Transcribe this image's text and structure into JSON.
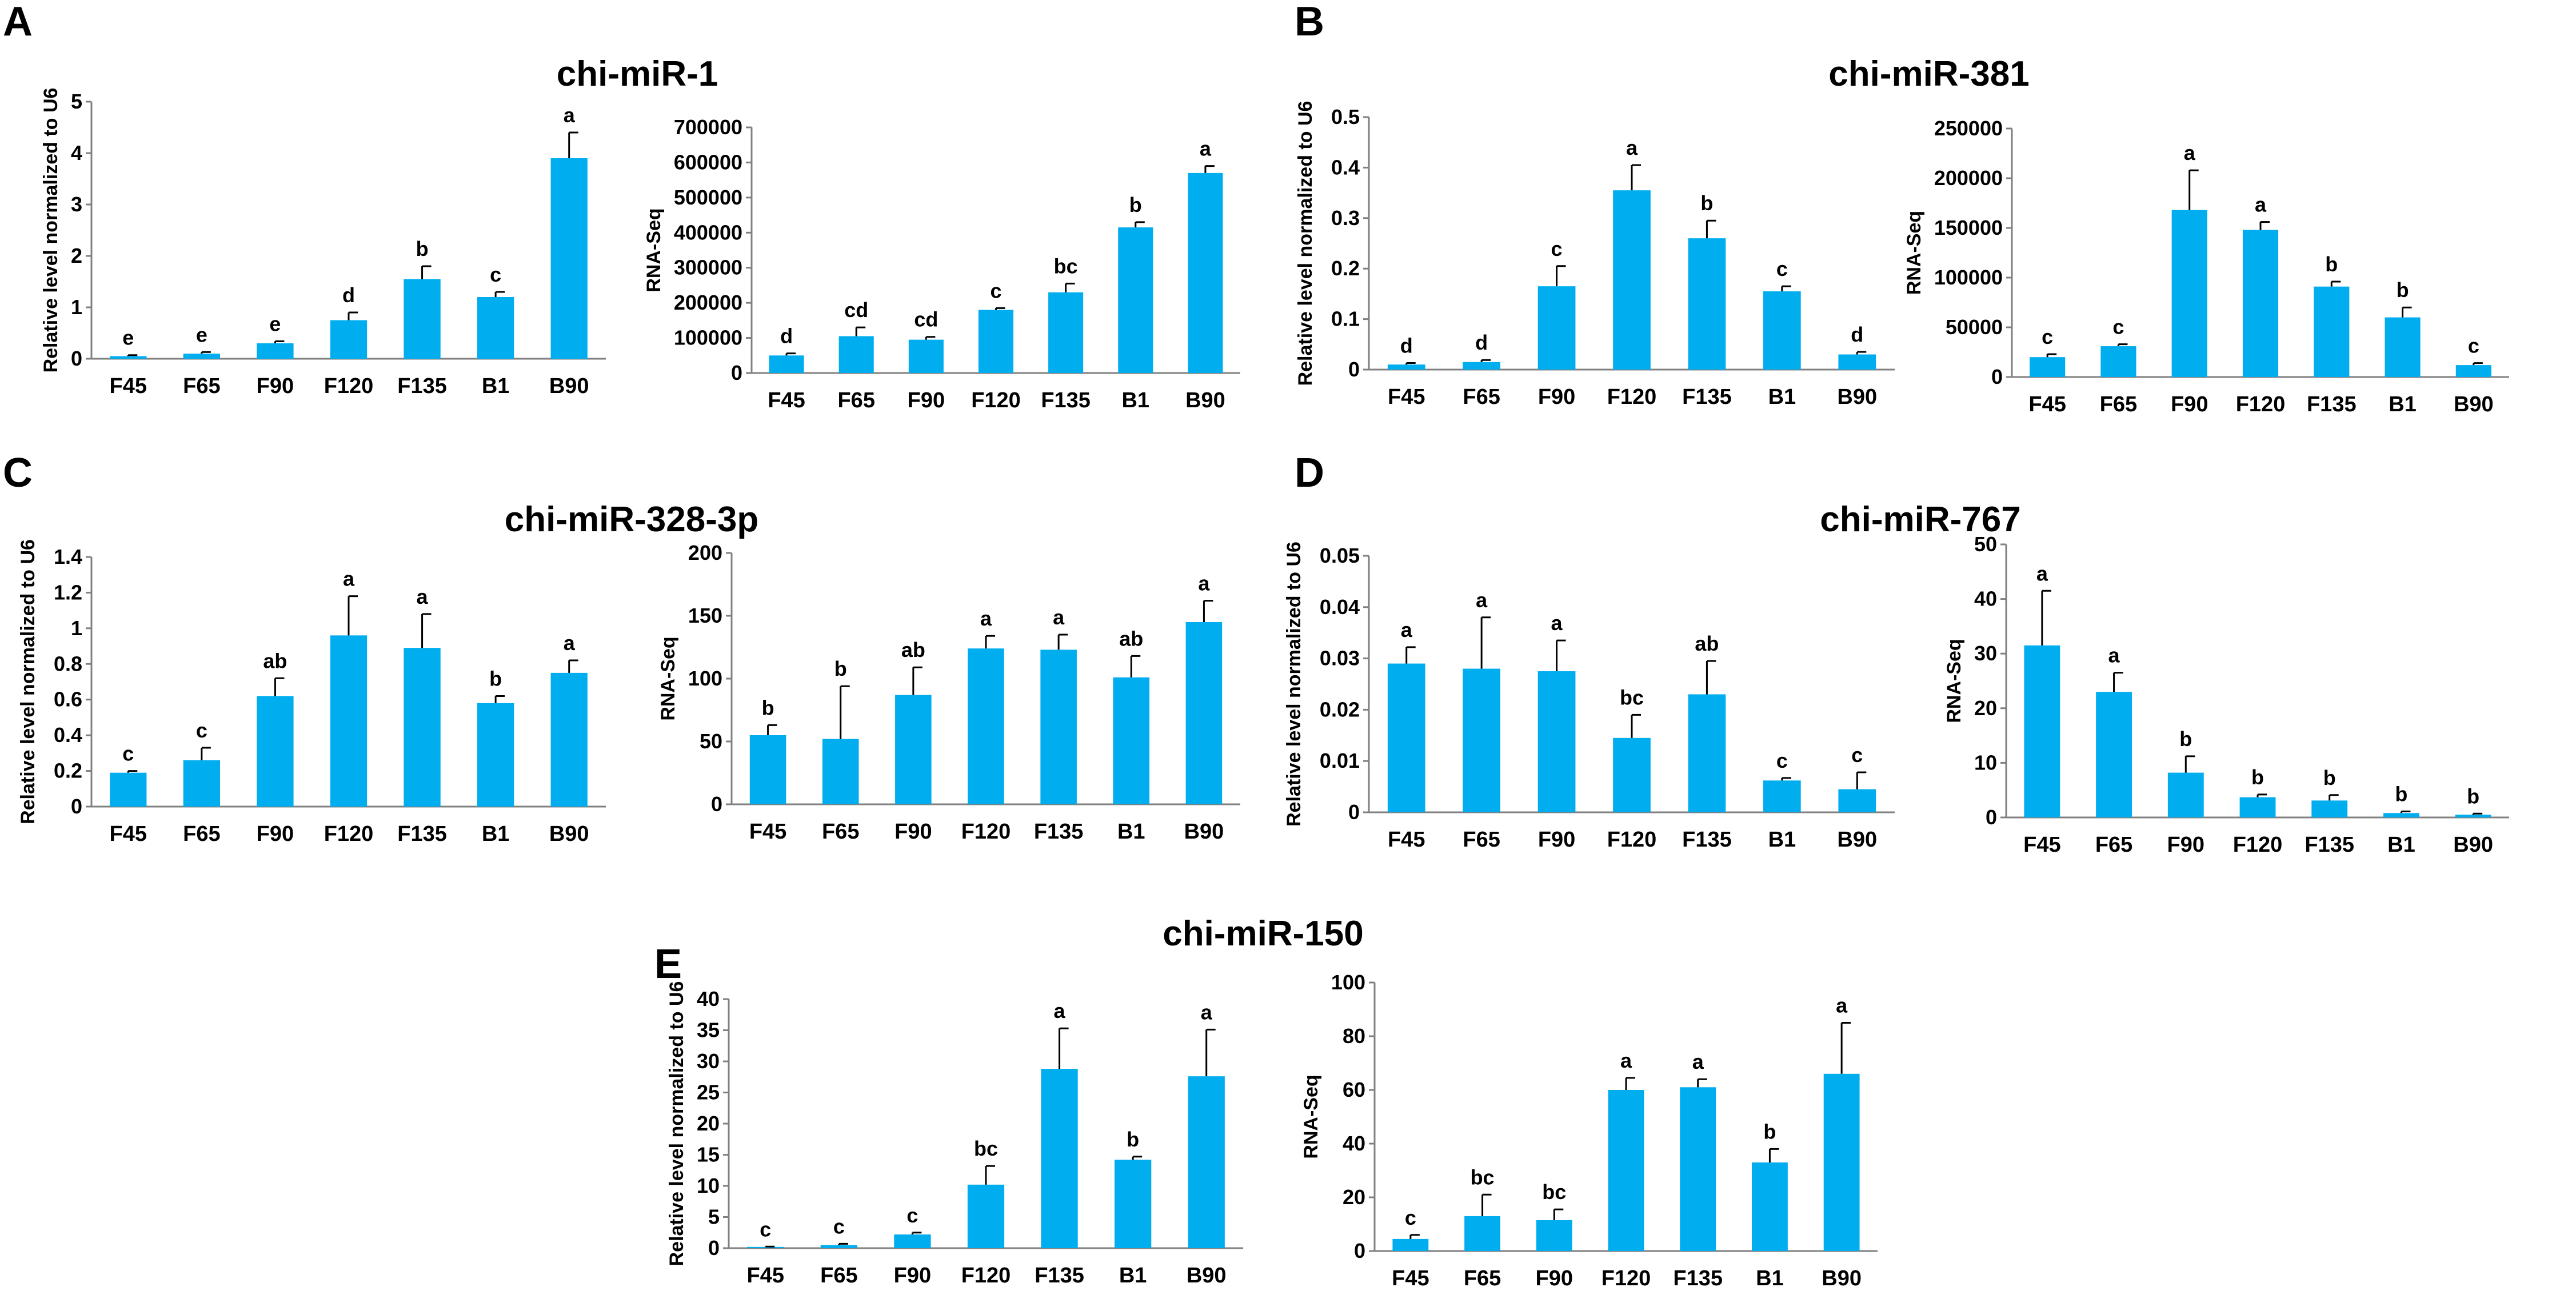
{
  "figure": {
    "bar_color": "#00AEEF",
    "error_color": "#000000",
    "axis_color": "#808080"
  },
  "chart_data": [
    {
      "panel": "A",
      "title": "chi-miR-1",
      "type": "bar",
      "categories": [
        "F45",
        "F65",
        "F90",
        "F120",
        "F135",
        "B1",
        "B90"
      ],
      "left": {
        "ylabel": "Relative level normalized to U6",
        "ylim": [
          0,
          5
        ],
        "ticks": [
          "0",
          "1",
          "2",
          "3",
          "4",
          "5"
        ],
        "values": [
          0.05,
          0.1,
          0.3,
          0.75,
          1.55,
          1.2,
          3.9
        ],
        "errors": [
          0.02,
          0.03,
          0.04,
          0.15,
          0.25,
          0.1,
          0.5
        ],
        "letters": [
          "e",
          "e",
          "e",
          "d",
          "b",
          "c",
          "a"
        ]
      },
      "right": {
        "ylabel": "RNA-Seq",
        "ylim": [
          0,
          700000
        ],
        "ticks": [
          "0",
          "100000",
          "200000",
          "300000",
          "400000",
          "500000",
          "600000",
          "700000"
        ],
        "values": [
          50000,
          105000,
          95000,
          180000,
          230000,
          415000,
          570000
        ],
        "errors": [
          6000,
          25000,
          8000,
          5000,
          25000,
          15000,
          20000
        ],
        "letters": [
          "d",
          "cd",
          "cd",
          "c",
          "bc",
          "b",
          "a"
        ]
      }
    },
    {
      "panel": "B",
      "title": "chi-miR-381",
      "type": "bar",
      "categories": [
        "F45",
        "F65",
        "F90",
        "F120",
        "F135",
        "B1",
        "B90"
      ],
      "left": {
        "ylabel": "Relative level normalized to U6",
        "ylim": [
          0,
          0.5
        ],
        "ticks": [
          "0",
          "0.1",
          "0.2",
          "0.3",
          "0.4",
          "0.5"
        ],
        "values": [
          0.01,
          0.015,
          0.165,
          0.355,
          0.26,
          0.155,
          0.03
        ],
        "errors": [
          0.003,
          0.004,
          0.04,
          0.05,
          0.035,
          0.01,
          0.005
        ],
        "letters": [
          "d",
          "d",
          "c",
          "a",
          "b",
          "c",
          "d"
        ]
      },
      "right": {
        "ylabel": "RNA-Seq",
        "ylim": [
          0,
          250000
        ],
        "ticks": [
          "0",
          "50000",
          "100000",
          "150000",
          "200000",
          "250000"
        ],
        "values": [
          20000,
          31000,
          168000,
          148000,
          91000,
          60000,
          12000
        ],
        "errors": [
          3000,
          2000,
          40000,
          8000,
          5000,
          10000,
          2000
        ],
        "letters": [
          "c",
          "c",
          "a",
          "a",
          "b",
          "b",
          "c"
        ]
      }
    },
    {
      "panel": "C",
      "title": "chi-miR-328-3p",
      "type": "bar",
      "categories": [
        "F45",
        "F65",
        "F90",
        "F120",
        "F135",
        "B1",
        "B90"
      ],
      "left": {
        "ylabel": "Relative level normalized to U6",
        "ylim": [
          0,
          1.4
        ],
        "ticks": [
          "0",
          "0.2",
          "0.4",
          "0.6",
          "0.8",
          "1",
          "1.2",
          "1.4"
        ],
        "values": [
          0.19,
          0.26,
          0.62,
          0.96,
          0.89,
          0.58,
          0.75
        ],
        "errors": [
          0.01,
          0.07,
          0.1,
          0.22,
          0.19,
          0.04,
          0.07
        ],
        "letters": [
          "c",
          "c",
          "ab",
          "a",
          "a",
          "b",
          "a"
        ]
      },
      "right": {
        "ylabel": "RNA-Seq",
        "ylim": [
          0,
          200
        ],
        "ticks": [
          "0",
          "50",
          "100",
          "150",
          "200"
        ],
        "values": [
          55,
          52,
          87,
          124,
          123,
          101,
          145
        ],
        "errors": [
          8,
          42,
          22,
          10,
          12,
          17,
          17
        ],
        "letters": [
          "b",
          "b",
          "ab",
          "a",
          "a",
          "ab",
          "a"
        ]
      }
    },
    {
      "panel": "D",
      "title": "chi-miR-767",
      "type": "bar",
      "categories": [
        "F45",
        "F65",
        "F90",
        "F120",
        "F135",
        "B1",
        "B90"
      ],
      "left": {
        "ylabel": "Relative level normalized to U6",
        "ylim": [
          0,
          0.05
        ],
        "ticks": [
          "0",
          "0.01",
          "0.02",
          "0.03",
          "0.04",
          "0.05"
        ],
        "values": [
          0.029,
          0.028,
          0.0275,
          0.0145,
          0.023,
          0.0062,
          0.0045
        ],
        "errors": [
          0.0032,
          0.01,
          0.006,
          0.0045,
          0.0065,
          0.0005,
          0.0033
        ],
        "letters": [
          "a",
          "a",
          "a",
          "bc",
          "ab",
          "c",
          "c"
        ]
      },
      "right": {
        "ylabel": "RNA-Seq",
        "ylim": [
          0,
          50
        ],
        "ticks": [
          "0",
          "10",
          "20",
          "30",
          "40",
          "50"
        ],
        "values": [
          31.5,
          23,
          8.2,
          3.7,
          3.1,
          0.8,
          0.5
        ],
        "errors": [
          10,
          3.5,
          3,
          0.5,
          1,
          0.3,
          0.2
        ],
        "letters": [
          "a",
          "a",
          "b",
          "b",
          "b",
          "b",
          "b"
        ]
      }
    },
    {
      "panel": "E",
      "title": "chi-miR-150",
      "type": "bar",
      "categories": [
        "F45",
        "F65",
        "F90",
        "F120",
        "F135",
        "B1",
        "B90"
      ],
      "left": {
        "ylabel": "Relative level normalized to U6",
        "ylim": [
          0,
          40
        ],
        "ticks": [
          "0",
          "5",
          "10",
          "15",
          "20",
          "25",
          "30",
          "35",
          "40"
        ],
        "values": [
          0.2,
          0.5,
          2.2,
          10.2,
          28.8,
          14.2,
          27.6
        ],
        "errors": [
          0.05,
          0.2,
          0.3,
          3,
          6.5,
          0.5,
          7.5
        ],
        "letters": [
          "c",
          "c",
          "c",
          "bc",
          "a",
          "b",
          "a"
        ]
      },
      "right": {
        "ylabel": "RNA-Seq",
        "ylim": [
          0,
          100
        ],
        "ticks": [
          "0",
          "20",
          "40",
          "60",
          "80",
          "100"
        ],
        "values": [
          4.5,
          13,
          11.5,
          60,
          61,
          33,
          66
        ],
        "errors": [
          1.5,
          8,
          4,
          4.5,
          3,
          5,
          19
        ],
        "letters": [
          "c",
          "bc",
          "bc",
          "a",
          "a",
          "b",
          "a"
        ]
      }
    }
  ]
}
